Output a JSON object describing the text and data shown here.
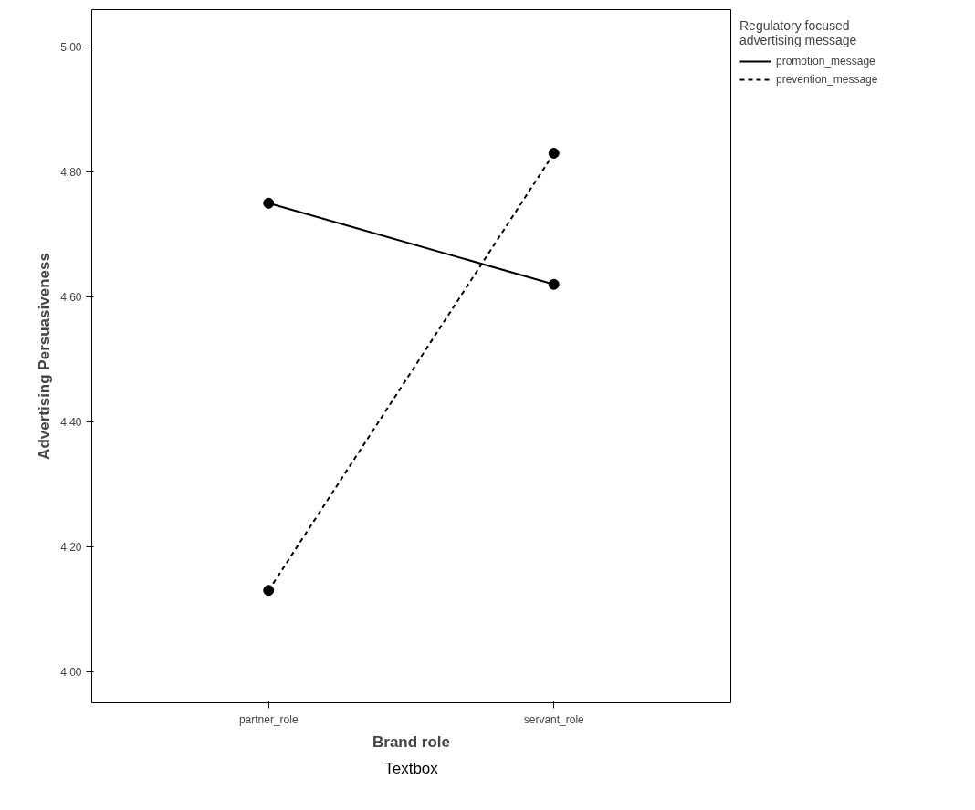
{
  "chart_data": {
    "type": "line",
    "xlabel": "Brand role",
    "ylabel": "Advertising Persuasiveness",
    "legend_title": "Regulatory focused\nadvertising message",
    "categories": [
      "partner_role",
      "servant_role"
    ],
    "series": [
      {
        "name": "promotion_message",
        "color": "#000000",
        "values": [
          4.75,
          4.62
        ],
        "line_style": "solid"
      },
      {
        "name": "prevention_message",
        "color": "#000000",
        "values": [
          4.13,
          4.83
        ],
        "line_style": "dashed"
      }
    ],
    "ylim": [
      3.95,
      5.06
    ],
    "yticks": [
      {
        "value": 4.0,
        "label": "4.00"
      },
      {
        "value": 4.2,
        "label": "4.20"
      },
      {
        "value": 4.4,
        "label": "4.40"
      },
      {
        "value": 4.6,
        "label": "4.60"
      },
      {
        "value": 4.8,
        "label": "4.80"
      },
      {
        "value": 5.0,
        "label": "5.00"
      }
    ],
    "marker": "circle",
    "grid": false,
    "legend": "right",
    "annotations": [
      "Textbox"
    ]
  }
}
